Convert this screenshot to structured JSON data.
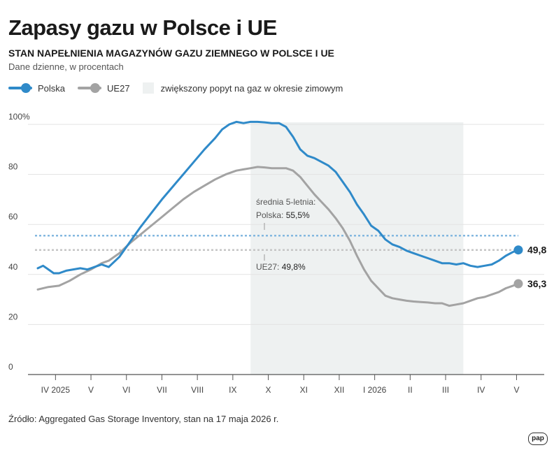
{
  "title": "Zapasy gazu w Polsce i UE",
  "subtitle": "STAN NAPEŁNIENIA MAGAZYNÓW GAZU ZIEMNEGO W POLSCE I UE",
  "units": "Dane dzienne, w procentach",
  "legend": {
    "polska": "Polska",
    "ue27": "UE27",
    "winter": "zwiększony popyt na gaz w okresie zimowym"
  },
  "source": "Źródło: Aggregated Gas Storage Inventory, stan na 17 maja 2026 r.",
  "logo": "pap",
  "colors": {
    "polska": "#2f8ac9",
    "ue27": "#a3a3a3",
    "winter": "#eef1f1",
    "axis": "#555555",
    "grid": "#e3e3e3"
  },
  "chart_data": {
    "type": "line",
    "x_unit": "month index (0 = 1 IV 2025)",
    "categories": [
      "IV 2025",
      "V",
      "VI",
      "VII",
      "VIII",
      "IX",
      "X",
      "XI",
      "XII",
      "I 2026",
      "II",
      "III",
      "IV",
      "V"
    ],
    "yticks": [
      "0",
      "20",
      "40",
      "60",
      "80",
      "100%"
    ],
    "ylim": [
      0,
      100
    ],
    "xlim": [
      0,
      13.55
    ],
    "winter_period": [
      6.0,
      12.0
    ],
    "averages": {
      "caption": "średnia 5-letnia:",
      "polska_label": "Polska:",
      "polska_value": "55,5%",
      "ue27_label": "UE27:",
      "ue27_value": "49,8%",
      "polska": 55.5,
      "ue27": 49.8
    },
    "end_labels": {
      "polska": "49,8",
      "ue27": "36,3"
    },
    "series": [
      {
        "name": "Polska",
        "x": [
          0.0,
          0.15,
          0.3,
          0.45,
          0.6,
          0.8,
          1.0,
          1.2,
          1.4,
          1.6,
          1.8,
          2.0,
          2.3,
          2.6,
          2.9,
          3.2,
          3.5,
          3.8,
          4.1,
          4.4,
          4.7,
          5.0,
          5.2,
          5.4,
          5.6,
          5.8,
          6.0,
          6.2,
          6.4,
          6.6,
          6.8,
          7.0,
          7.2,
          7.4,
          7.6,
          7.8,
          8.0,
          8.2,
          8.4,
          8.6,
          8.8,
          9.0,
          9.2,
          9.4,
          9.6,
          9.8,
          10.0,
          10.2,
          10.4,
          10.6,
          10.8,
          11.0,
          11.2,
          11.4,
          11.6,
          11.8,
          12.0,
          12.2,
          12.4,
          12.6,
          12.8,
          13.0,
          13.2,
          13.4,
          13.55
        ],
        "values": [
          42.5,
          43.5,
          42.0,
          40.5,
          40.5,
          41.5,
          42.0,
          42.5,
          42.0,
          43.0,
          44.0,
          43.0,
          47.0,
          53.0,
          59.0,
          64.5,
          70.0,
          75.0,
          80.0,
          85.0,
          90.0,
          94.5,
          98.0,
          100.0,
          101.0,
          100.5,
          101.0,
          101.0,
          100.8,
          100.5,
          100.5,
          99.0,
          95.0,
          90.0,
          87.5,
          86.5,
          85.0,
          83.5,
          81.0,
          77.0,
          73.0,
          68.0,
          64.0,
          59.5,
          57.5,
          54.0,
          52.0,
          51.0,
          49.5,
          48.5,
          47.5,
          46.5,
          45.5,
          44.5,
          44.5,
          44.0,
          44.5,
          43.5,
          43.0,
          43.5,
          44.0,
          45.5,
          47.5,
          49.0,
          49.8
        ]
      },
      {
        "name": "UE27",
        "x": [
          0.0,
          0.3,
          0.6,
          0.9,
          1.2,
          1.5,
          1.8,
          2.0,
          2.3,
          2.6,
          2.9,
          3.2,
          3.5,
          3.8,
          4.1,
          4.4,
          4.7,
          5.0,
          5.3,
          5.6,
          5.8,
          6.0,
          6.2,
          6.4,
          6.6,
          6.8,
          7.0,
          7.2,
          7.4,
          7.6,
          7.8,
          8.0,
          8.2,
          8.4,
          8.6,
          8.8,
          9.0,
          9.2,
          9.4,
          9.6,
          9.8,
          10.0,
          10.2,
          10.4,
          10.6,
          10.8,
          11.0,
          11.2,
          11.4,
          11.6,
          11.8,
          12.0,
          12.2,
          12.4,
          12.6,
          12.8,
          13.0,
          13.2,
          13.4,
          13.55
        ],
        "values": [
          34.0,
          35.0,
          35.5,
          37.5,
          40.0,
          42.0,
          44.5,
          45.5,
          48.5,
          52.5,
          56.0,
          59.5,
          63.0,
          66.5,
          70.0,
          73.0,
          75.5,
          78.0,
          80.0,
          81.5,
          82.0,
          82.5,
          83.0,
          82.8,
          82.5,
          82.5,
          82.5,
          81.5,
          79.0,
          75.5,
          72.0,
          69.0,
          66.0,
          62.5,
          58.5,
          53.5,
          47.5,
          42.0,
          37.5,
          34.5,
          31.5,
          30.5,
          30.0,
          29.5,
          29.2,
          29.0,
          28.8,
          28.5,
          28.5,
          27.5,
          28.0,
          28.5,
          29.5,
          30.5,
          31.0,
          32.0,
          33.0,
          34.5,
          35.5,
          36.3
        ]
      }
    ]
  }
}
